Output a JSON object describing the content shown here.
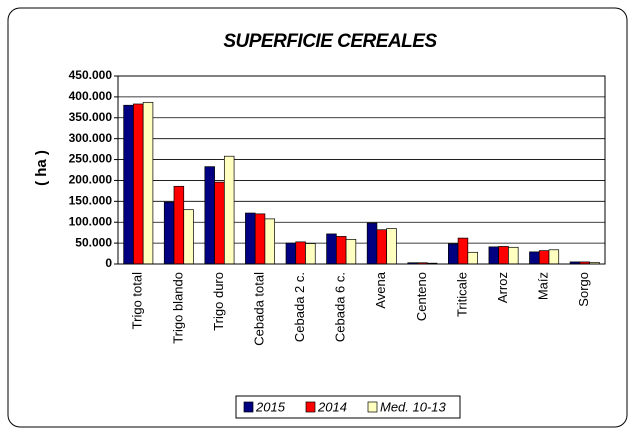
{
  "chart_data": {
    "type": "bar",
    "title": "SUPERFICIE CEREALES",
    "y_label": "( ha )",
    "categories": [
      "Trigo total",
      "Trigo blando",
      "Trigo duro",
      "Cebada total",
      "Cebada 2 c.",
      "Cebada 6 c.",
      "Avena",
      "Centeno",
      "Triticale",
      "Arroz",
      "Maíz",
      "Sorgo"
    ],
    "series": [
      {
        "name": "2015",
        "color": "#000080",
        "values": [
          380000,
          148000,
          233000,
          122000,
          50000,
          72000,
          98000,
          3000,
          48000,
          41000,
          29000,
          5000
        ]
      },
      {
        "name": "2014",
        "color": "#ff0000",
        "values": [
          383000,
          186000,
          196000,
          120000,
          53000,
          66000,
          82000,
          3000,
          62000,
          42000,
          32000,
          5000
        ]
      },
      {
        "name": "Med. 10-13",
        "color": "#ffffc0",
        "values": [
          387000,
          130000,
          258000,
          108000,
          49000,
          59000,
          85000,
          2000,
          28000,
          40000,
          34000,
          4000
        ]
      }
    ],
    "ylim": [
      0,
      450000
    ],
    "yticks": [
      0,
      {
        "value": 50000,
        "label": "50.000"
      },
      {
        "value": 100000,
        "label": "100.000"
      },
      {
        "value": 150000,
        "label": "150.000"
      },
      {
        "value": 200000,
        "label": "200.000"
      },
      {
        "value": 250000,
        "label": "250.000"
      },
      {
        "value": 300000,
        "label": "300.000"
      },
      {
        "value": 350000,
        "label": "350.000"
      },
      {
        "value": 400000,
        "label": "400.000"
      },
      {
        "value": 450000,
        "label": "450.000"
      }
    ],
    "grid": true,
    "legend": "bottom"
  }
}
